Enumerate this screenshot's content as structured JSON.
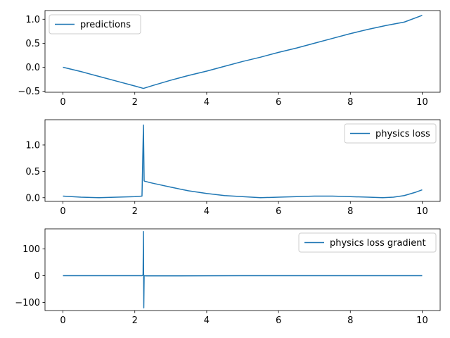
{
  "chart_data": [
    {
      "type": "line",
      "title": "",
      "xlabel": "",
      "ylabel": "",
      "xlim": [
        -0.5,
        10.5
      ],
      "ylim": [
        -0.52,
        1.18
      ],
      "xticks": [
        0,
        2,
        4,
        6,
        8,
        10
      ],
      "xtick_labels": [
        "0",
        "2",
        "4",
        "6",
        "8",
        "10"
      ],
      "yticks": [
        -0.5,
        0.0,
        0.5,
        1.0
      ],
      "ytick_labels": [
        "−0.5",
        "0.0",
        "0.5",
        "1.0"
      ],
      "legend_position": "top-left",
      "grid": false,
      "series": [
        {
          "name": "predictions",
          "color": "#1f77b4",
          "x": [
            0,
            0.5,
            1.0,
            1.5,
            2.0,
            2.24,
            2.5,
            3.0,
            3.5,
            4.0,
            4.5,
            5.0,
            5.5,
            6.0,
            6.5,
            7.0,
            7.5,
            8.0,
            8.5,
            9.0,
            9.5,
            10.0
          ],
          "y": [
            0.0,
            -0.09,
            -0.19,
            -0.29,
            -0.39,
            -0.44,
            -0.38,
            -0.27,
            -0.17,
            -0.08,
            0.02,
            0.12,
            0.21,
            0.31,
            0.4,
            0.5,
            0.6,
            0.7,
            0.79,
            0.87,
            0.94,
            1.08
          ]
        }
      ]
    },
    {
      "type": "line",
      "title": "",
      "xlabel": "",
      "ylabel": "",
      "xlim": [
        -0.5,
        10.5
      ],
      "ylim": [
        -0.07,
        1.48
      ],
      "xticks": [
        0,
        2,
        4,
        6,
        8,
        10
      ],
      "xtick_labels": [
        "0",
        "2",
        "4",
        "6",
        "8",
        "10"
      ],
      "yticks": [
        0.0,
        0.5,
        1.0
      ],
      "ytick_labels": [
        "0.0",
        "0.5",
        "1.0"
      ],
      "legend_position": "top-right",
      "grid": false,
      "series": [
        {
          "name": "physics loss",
          "color": "#1f77b4",
          "x": [
            0,
            0.5,
            1.0,
            1.5,
            2.0,
            2.2,
            2.24,
            2.26,
            2.28,
            2.3,
            2.4,
            2.6,
            3.0,
            3.5,
            4.0,
            4.5,
            5.0,
            5.5,
            6.0,
            6.5,
            7.0,
            7.5,
            8.0,
            8.5,
            8.9,
            9.2,
            9.5,
            9.8,
            10.0
          ],
          "y": [
            0.03,
            0.01,
            0.0,
            0.01,
            0.02,
            0.03,
            1.38,
            0.32,
            0.31,
            0.31,
            0.29,
            0.26,
            0.2,
            0.13,
            0.08,
            0.04,
            0.02,
            0.0,
            0.01,
            0.02,
            0.03,
            0.03,
            0.02,
            0.01,
            0.0,
            0.01,
            0.04,
            0.1,
            0.15
          ]
        }
      ]
    },
    {
      "type": "line",
      "title": "",
      "xlabel": "",
      "ylabel": "",
      "xlim": [
        -0.5,
        10.5
      ],
      "ylim": [
        -130,
        175
      ],
      "xticks": [
        0,
        2,
        4,
        6,
        8,
        10
      ],
      "xtick_labels": [
        "0",
        "2",
        "4",
        "6",
        "8",
        "10"
      ],
      "yticks": [
        -100,
        0,
        100
      ],
      "ytick_labels": [
        "−100",
        "0",
        "100"
      ],
      "legend_position": "top-right",
      "grid": false,
      "series": [
        {
          "name": "physics loss gradient",
          "color": "#1f77b4",
          "x": [
            0,
            1.0,
            2.0,
            2.2,
            2.23,
            2.24,
            2.25,
            2.26,
            2.28,
            2.3,
            3.0,
            4.0,
            5.0,
            6.0,
            7.0,
            8.0,
            9.0,
            10.0
          ],
          "y": [
            0,
            0,
            0,
            0,
            3,
            165,
            -120,
            0,
            0,
            -0.5,
            -0.5,
            -0.3,
            0,
            0,
            0,
            0,
            0,
            0
          ]
        }
      ]
    }
  ]
}
